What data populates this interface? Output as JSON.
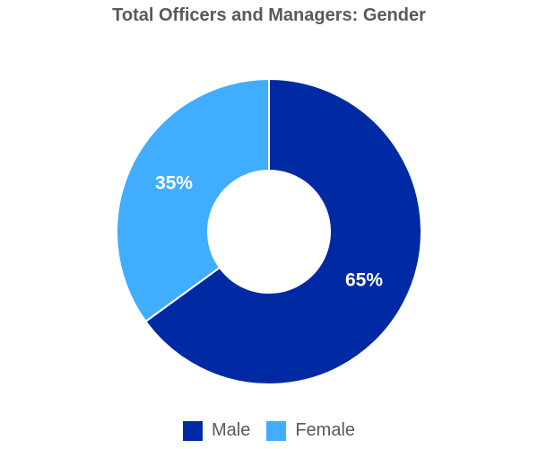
{
  "chart_data": {
    "type": "pie",
    "title": "Total Officers and Managers: Gender",
    "donut": true,
    "slices": [
      {
        "label": "Male",
        "value": 65,
        "display": "65%",
        "color": "#002AA3"
      },
      {
        "label": "Female",
        "value": 35,
        "display": "35%",
        "color": "#40ADFF"
      }
    ],
    "legend_position": "bottom"
  }
}
